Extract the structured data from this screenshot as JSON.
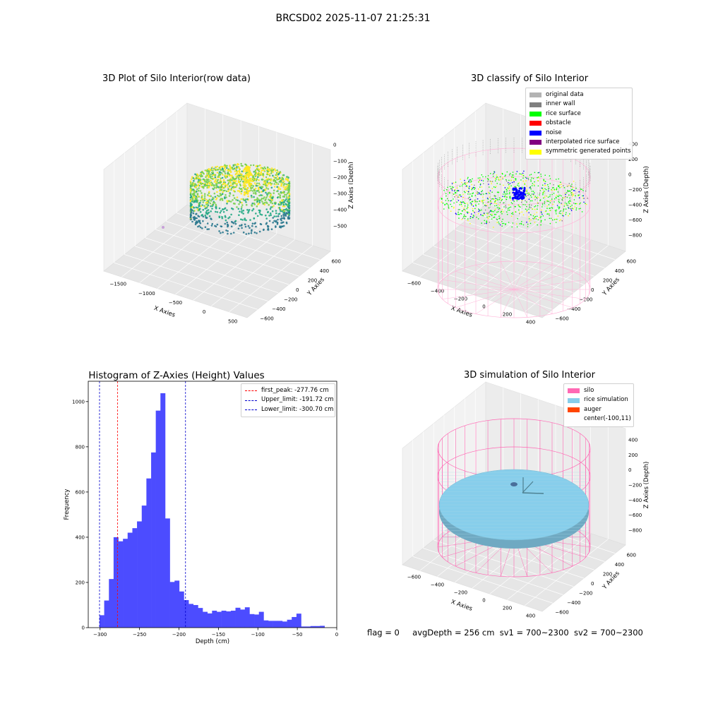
{
  "figure": {
    "title": "BRCSD02 2025-11-07 21:25:31",
    "status": {
      "flag": "flag = 0",
      "avg_depth": "avgDepth = 256 cm",
      "sv1": "sv1 = 700~2300",
      "sv2": "sv2 = 700~2300"
    }
  },
  "chart_data": [
    {
      "type": "scatter",
      "title": "3D Plot of Silo Interior(row data)",
      "xlabel": "X Axies",
      "ylabel": "Y Axies",
      "zlabel": "Z Axies (Depth)",
      "x_ticks": [
        "−1500",
        "−1000",
        "−500",
        "0",
        "500"
      ],
      "y_ticks": [
        "−600",
        "−400",
        "−200",
        "0",
        "200",
        "400",
        "600"
      ],
      "z_ticks": [
        "−500",
        "−400",
        "−300",
        "−200",
        "−100",
        "0"
      ],
      "colormap": [
        "#2a788e",
        "#22a884",
        "#7ad151",
        "#fde725"
      ],
      "outlier_color": "#c8a0d8"
    },
    {
      "type": "scatter",
      "title": "3D classify of Silo Interior",
      "xlabel": "X Axies",
      "ylabel": "Y Axies",
      "zlabel": "Z Axies (Depth)",
      "x_ticks": [
        "−600",
        "−400",
        "−200",
        "0",
        "200",
        "400"
      ],
      "y_ticks": [
        "−600",
        "−400",
        "−200",
        "0",
        "200",
        "400",
        "600"
      ],
      "z_ticks": [
        "−800",
        "−600",
        "−400",
        "−200",
        "0",
        "200",
        "400"
      ],
      "legend": [
        {
          "label": "original data",
          "color": "#b3b3b3"
        },
        {
          "label": "inner wall",
          "color": "#808080"
        },
        {
          "label": "rice surface",
          "color": "#00ff00"
        },
        {
          "label": "obstacle",
          "color": "#ff0000"
        },
        {
          "label": "noise",
          "color": "#0000ff"
        },
        {
          "label": "interpolated rice surface",
          "color": "#800080"
        },
        {
          "label": "symmetric generated points",
          "color": "#ffff00"
        }
      ],
      "wire_color": "#ffb6d9"
    },
    {
      "type": "bar",
      "title": "Histogram of Z-Axies (Height) Values",
      "xlabel": "Depth (cm)",
      "ylabel": "Frequency",
      "xlim": [
        -315,
        0
      ],
      "ylim": [
        0,
        1090
      ],
      "x_ticks": [
        -300,
        -250,
        -200,
        -150,
        -100,
        -50,
        0
      ],
      "y_ticks": [
        0,
        200,
        400,
        600,
        800,
        1000
      ],
      "bar_color": "#4c4cff",
      "bin_edges": [
        -300.7,
        -294.8,
        -288.8,
        -282.9,
        -276.9,
        -271.0,
        -265.1,
        -259.1,
        -253.2,
        -247.2,
        -241.3,
        -235.3,
        -229.4,
        -223.5,
        -217.5,
        -211.6,
        -205.6,
        -199.7,
        -193.8,
        -187.8,
        -181.9,
        -175.9,
        -170.0,
        -164.0,
        -158.1,
        -152.2,
        -146.2,
        -140.3,
        -134.3,
        -128.4,
        -122.4,
        -116.5,
        -110.6,
        -104.6,
        -98.7,
        -92.7,
        -86.8,
        -80.9,
        -74.9,
        -69.0,
        -63.0,
        -57.1,
        -51.1,
        -45.2,
        -39.3,
        -33.3,
        -27.4,
        -21.4,
        -15.5
      ],
      "counts": [
        55,
        120,
        215,
        400,
        382,
        393,
        420,
        440,
        470,
        540,
        660,
        775,
        960,
        1037,
        483,
        202,
        208,
        160,
        122,
        105,
        100,
        87,
        70,
        63,
        75,
        70,
        75,
        72,
        75,
        88,
        80,
        90,
        60,
        58,
        70,
        32,
        30,
        30,
        30,
        27,
        35,
        47,
        62,
        5,
        5,
        7,
        7,
        8
      ],
      "reference_lines": [
        {
          "label": "first_peak: -277.76 cm",
          "value": -277.76,
          "color": "#ff0000"
        },
        {
          "label": "Upper_limit: -191.72 cm",
          "value": -191.72,
          "color": "#0000cc"
        },
        {
          "label": "Lower_limit: -300.70 cm",
          "value": -300.7,
          "color": "#0000cc"
        }
      ]
    },
    {
      "type": "scatter",
      "title": "3D simulation of Silo Interior",
      "xlabel": "X Axies",
      "ylabel": "Y Axies",
      "zlabel": "Z Axies (Depth)",
      "x_ticks": [
        "−600",
        "−400",
        "−200",
        "0",
        "200",
        "400"
      ],
      "y_ticks": [
        "−600",
        "−400",
        "−200",
        "0",
        "200",
        "400",
        "600"
      ],
      "z_ticks": [
        "−800",
        "−600",
        "−400",
        "−200",
        "0",
        "200",
        "400"
      ],
      "legend": [
        {
          "label": "silo",
          "color": "#ff69b4"
        },
        {
          "label": "rice simulation",
          "color": "#87ceeb"
        },
        {
          "label": "auger",
          "color": "#ff4500"
        },
        {
          "label": "center(-100,11)",
          "color": ""
        }
      ]
    }
  ]
}
